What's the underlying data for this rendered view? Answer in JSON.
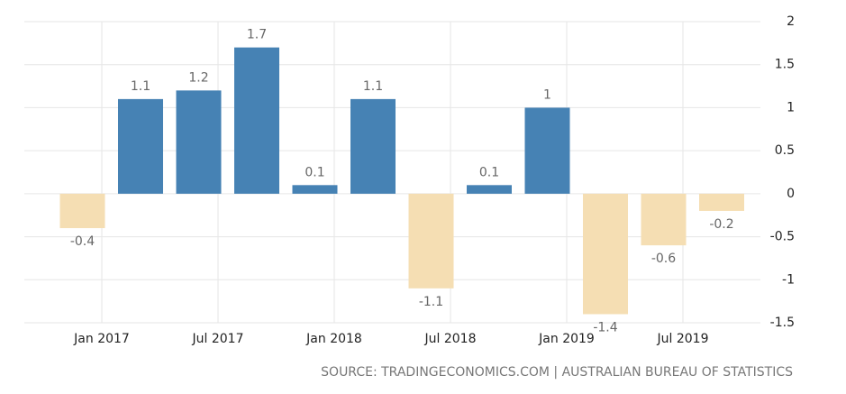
{
  "chart_data": {
    "type": "bar",
    "x": [
      "2016-12",
      "2017-03",
      "2017-06",
      "2017-09",
      "2017-12",
      "2018-03",
      "2018-06",
      "2018-09",
      "2018-12",
      "2019-03",
      "2019-06",
      "2019-09"
    ],
    "values": [
      -0.4,
      1.1,
      1.2,
      1.7,
      0.1,
      1.1,
      -1.1,
      0.1,
      1,
      -1.4,
      -0.6,
      -0.2
    ],
    "color_positive": "#4682b4",
    "color_negative": "#f5deb3",
    "xlim": [
      "2016-09",
      "2019-11"
    ],
    "xticks": [
      {
        "value": "2017-01",
        "label": "Jan 2017"
      },
      {
        "value": "2017-07",
        "label": "Jul 2017"
      },
      {
        "value": "2018-01",
        "label": "Jan 2018"
      },
      {
        "value": "2018-07",
        "label": "Jul 2018"
      },
      {
        "value": "2019-01",
        "label": "Jan 2019"
      },
      {
        "value": "2019-07",
        "label": "Jul 2019"
      }
    ],
    "ylim": [
      -1.5,
      2
    ],
    "yticks": [
      2,
      1.5,
      1,
      0.5,
      0,
      -0.5,
      -1,
      -1.5
    ],
    "grid": true,
    "source": "SOURCE: TRADINGECONOMICS.COM | AUSTRALIAN BUREAU OF STATISTICS"
  }
}
